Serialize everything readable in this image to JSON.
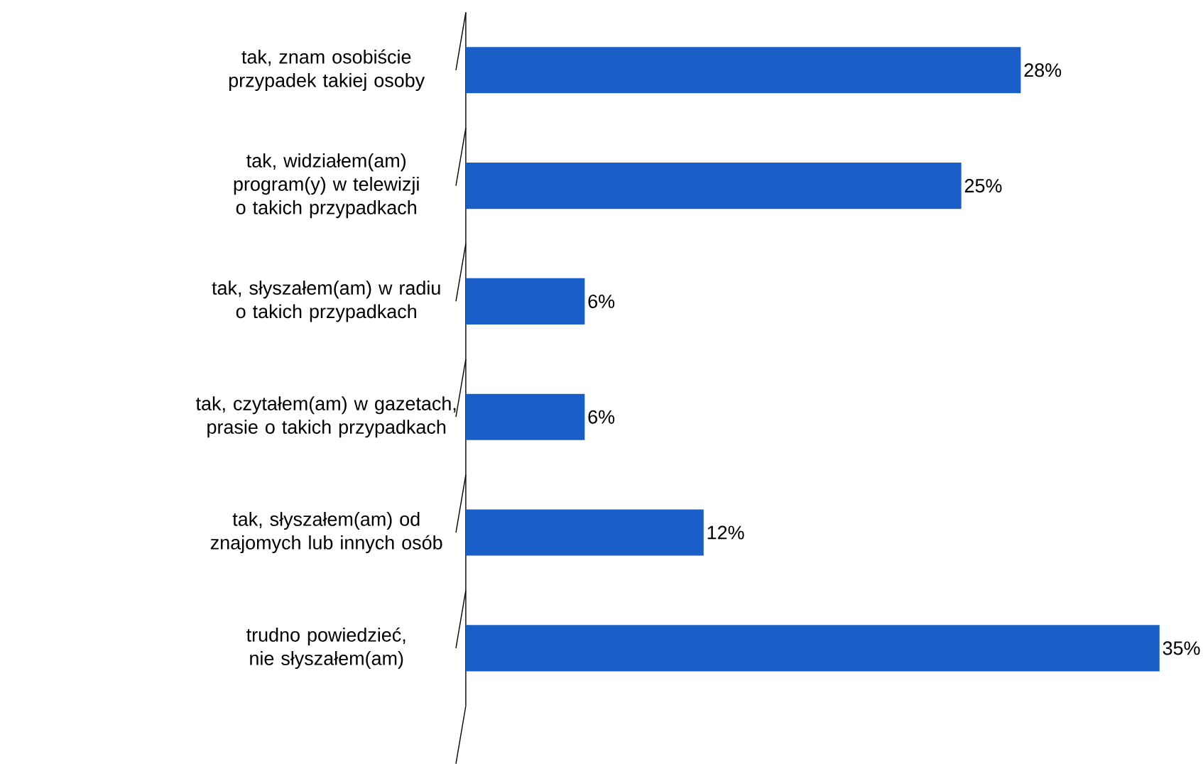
{
  "chart_data": {
    "type": "bar",
    "orientation": "horizontal",
    "categories": [
      "tak, znam osobiście przypadek takiej osoby",
      "tak, widziałem(am) program(y) w telewizji o takich przypadkach",
      "tak, słyszałem(am) w radiu o takich przypadkach",
      "tak, czytałem(am) w gazetach, prasie o takich przypadkach",
      "tak, słyszałem(am) od znajomych lub innych osób",
      "trudno powiedzieć, nie słyszałem(am)"
    ],
    "values": [
      28,
      25,
      6,
      6,
      12,
      35
    ],
    "value_labels": [
      "28%",
      "25%",
      "6%",
      "6%",
      "12%",
      "35%"
    ],
    "color": "#1a5fc8"
  }
}
